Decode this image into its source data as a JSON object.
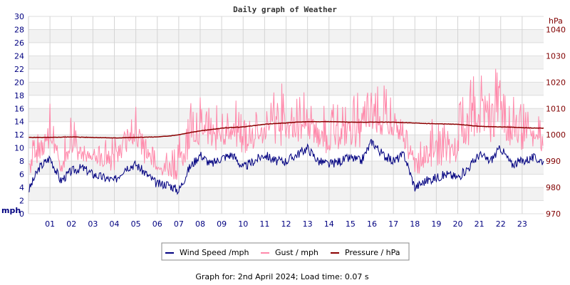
{
  "chart_data": {
    "type": "line",
    "title": "Daily graph of Weather",
    "footer": "Graph for: 2nd April 2024; Load time: 0.07 s",
    "left_axis": {
      "label": "mph",
      "ylim": [
        0,
        30
      ],
      "ticks": [
        "0",
        "2",
        "4",
        "6",
        "8",
        "10",
        "12",
        "14",
        "16",
        "18",
        "20",
        "22",
        "24",
        "26",
        "28",
        "30"
      ],
      "color": "#000080"
    },
    "right_axis": {
      "label": "hPa",
      "ylim": [
        970,
        1045
      ],
      "ticks": [
        "970",
        "980",
        "990",
        "1000",
        "1010",
        "1020",
        "1030",
        "1040"
      ],
      "color": "#800000"
    },
    "x_axis": {
      "xlim": [
        0,
        24
      ],
      "ticks": [
        "01",
        "02",
        "03",
        "04",
        "05",
        "06",
        "07",
        "08",
        "09",
        "10",
        "11",
        "12",
        "13",
        "14",
        "15",
        "16",
        "17",
        "18",
        "19",
        "20",
        "21",
        "22",
        "23"
      ]
    },
    "grid": true,
    "legend_position": "bottom",
    "x_hours": [
      0,
      0.5,
      1,
      1.5,
      2,
      2.5,
      3,
      3.5,
      4,
      4.5,
      5,
      5.5,
      6,
      6.5,
      7,
      7.5,
      8,
      8.5,
      9,
      9.5,
      10,
      10.5,
      11,
      11.5,
      12,
      12.5,
      13,
      13.5,
      14,
      14.5,
      15,
      15.5,
      16,
      16.5,
      17,
      17.5,
      18,
      18.5,
      19,
      19.5,
      20,
      20.5,
      21,
      21.5,
      22,
      22.5,
      23,
      23.5,
      24
    ],
    "series": [
      {
        "name": "Wind Speed /mph",
        "color": "#000080",
        "axis": "left",
        "values": [
          3.5,
          7,
          8.5,
          5,
          6.5,
          7,
          6,
          5.5,
          5,
          7,
          7.5,
          6,
          4.5,
          4.5,
          3.5,
          7,
          9,
          7.5,
          8.5,
          9,
          7,
          8,
          9,
          8,
          8,
          9,
          10,
          8,
          7.5,
          8,
          8.5,
          8,
          11,
          9,
          8,
          9,
          4,
          5,
          5.5,
          6,
          5.5,
          7,
          9,
          8,
          10,
          7.5,
          8,
          8.5,
          8
        ]
      },
      {
        "name": "Gust / mph",
        "color": "#ff88aa",
        "axis": "left",
        "values": [
          14,
          12,
          17,
          10,
          16,
          13,
          11,
          12,
          12,
          17,
          17,
          13,
          11,
          10,
          12,
          18,
          18,
          16,
          17,
          18,
          16,
          15,
          18,
          20,
          20,
          18,
          19,
          17,
          16,
          18,
          18,
          19,
          19,
          20,
          18,
          14,
          13,
          14,
          15,
          14,
          16,
          22,
          24,
          20,
          24,
          18,
          17,
          16,
          15
        ]
      },
      {
        "name": "Pressure / hPa",
        "color": "#8b0000",
        "axis": "right",
        "values": [
          999,
          999,
          999,
          999.1,
          999.2,
          999.1,
          999,
          998.9,
          998.8,
          998.9,
          999,
          999.1,
          999.2,
          999.5,
          1000,
          1000.8,
          1001.5,
          1002,
          1002.5,
          1002.8,
          1003,
          1003.5,
          1004,
          1004.3,
          1004.5,
          1004.8,
          1005,
          1005,
          1005,
          1004.9,
          1004.8,
          1004.8,
          1004.8,
          1004.8,
          1004.8,
          1004.6,
          1004.5,
          1004.3,
          1004.2,
          1004.1,
          1004,
          1003.6,
          1003.2,
          1003.1,
          1003,
          1002.9,
          1002.7,
          1002.6,
          1002.5
        ]
      }
    ]
  }
}
